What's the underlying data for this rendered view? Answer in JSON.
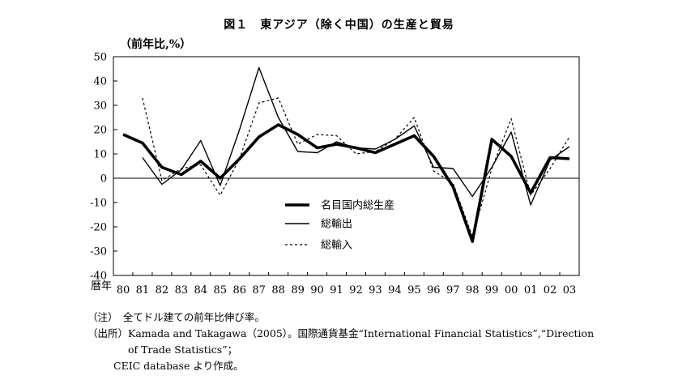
{
  "chart_data": {
    "type": "line",
    "title": "図１　東アジア（除く中国）の生産と貿易",
    "ylabel": "（前年比,%）",
    "xlabel": "暦年",
    "ylim": [
      -40,
      50
    ],
    "yticks": [
      50,
      40,
      30,
      20,
      10,
      0,
      -10,
      -20,
      -30,
      -40
    ],
    "categories": [
      "80",
      "81",
      "82",
      "83",
      "84",
      "85",
      "86",
      "87",
      "88",
      "89",
      "90",
      "91",
      "92",
      "93",
      "94",
      "95",
      "96",
      "97",
      "98",
      "99",
      "00",
      "01",
      "02",
      "03"
    ],
    "legend_position": "center-right",
    "series": [
      {
        "name": "名目国内総生産",
        "style": "thick",
        "values": [
          18,
          14.5,
          4.5,
          1.5,
          7,
          0,
          8,
          17,
          22,
          18,
          12.5,
          14,
          12.5,
          10.5,
          14,
          17.5,
          9,
          -3.5,
          -26,
          16,
          9,
          -6,
          8.5,
          8
        ]
      },
      {
        "name": "総輸出",
        "style": "thin",
        "values": [
          null,
          8.5,
          -2.5,
          3.5,
          15.5,
          -3,
          20,
          45.5,
          25,
          11,
          10.5,
          15,
          12.5,
          12,
          16,
          21.5,
          4.5,
          4,
          -7.5,
          4.5,
          19,
          -11,
          7.5,
          13
        ]
      },
      {
        "name": "総輸入",
        "style": "dotted",
        "values": [
          null,
          33,
          -1,
          4,
          5.5,
          -7,
          8,
          31,
          33,
          14,
          18,
          17.5,
          10,
          11,
          16,
          25,
          3,
          -2,
          -24,
          4,
          24.5,
          -7,
          4,
          17
        ]
      }
    ]
  },
  "notes": {
    "line1": "（注）　全てドル建ての前年比伸び率。",
    "line2": "（出所）Kamada and Takagawa（2005）。国際通貨基金“International Financial Statistics”,“Direction",
    "line3": "of Trade Statistics”；",
    "line4": "CEIC database より作成。"
  }
}
